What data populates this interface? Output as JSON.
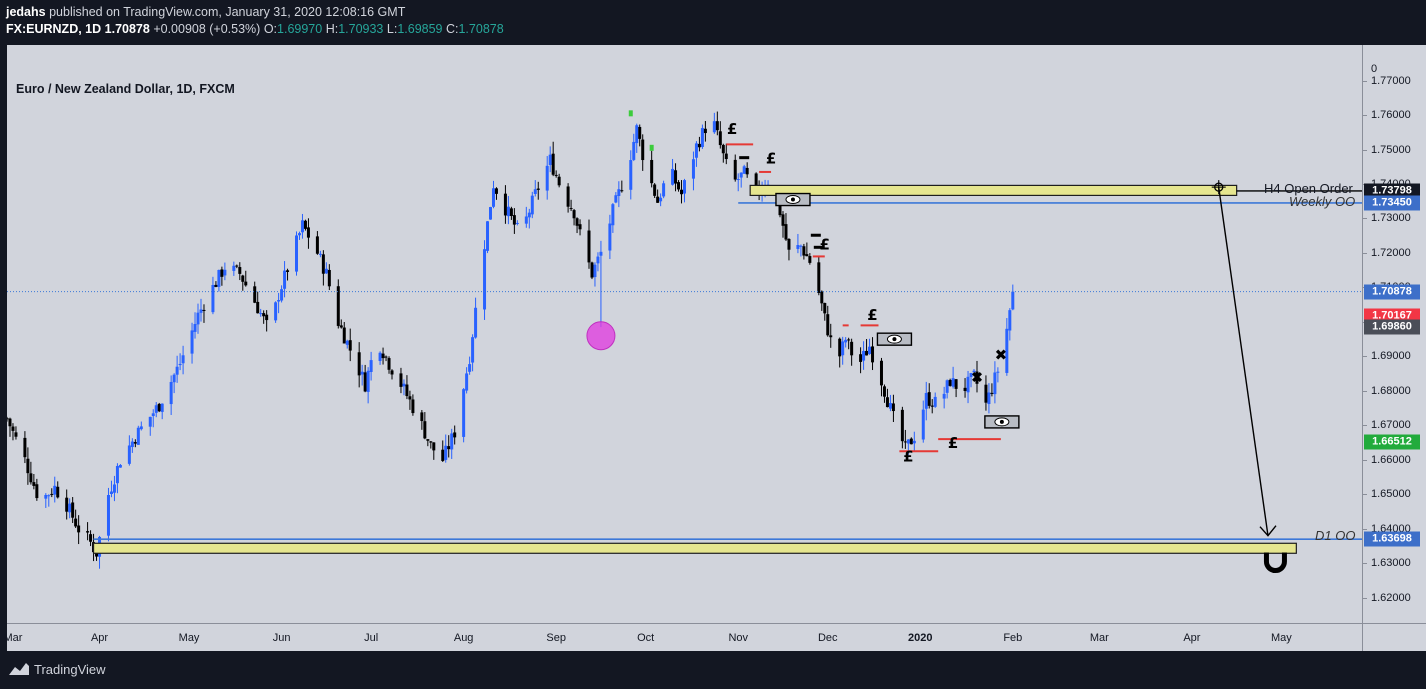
{
  "header": {
    "line1_author": "jedahs",
    "line1_rest": " published on TradingView.com, January 31, 2020 12:08:16 GMT",
    "symbol": "FX:EURNZD, 1D",
    "last": "1.70878",
    "change": "+0.00908 (+0.53%)",
    "o_label": "O:",
    "o": "1.69970",
    "h_label": "H:",
    "h": "1.70933",
    "l_label": "L:",
    "l": "1.69859",
    "c_label": "C:",
    "c": "1.70878"
  },
  "chart_title": "Euro / New Zealand Dollar, 1D, FXCM",
  "annotations": {
    "h4_open_order": "H4 Open Order",
    "weekly_oo": "Weekly OO",
    "d1_oo": "D1 OO"
  },
  "footer": {
    "brand": "TradingView"
  },
  "colors": {
    "bull": "#2962ff",
    "bear": "#000000",
    "zone": "#e6e68f",
    "line": "#3c78d8",
    "badge_blue": "#3d6fc9",
    "badge_red": "#f23645",
    "badge_grey": "#4a4e58",
    "badge_green": "#22ab3c",
    "badge_black": "#131722",
    "pink": "#e040e0"
  },
  "chart_data": {
    "type": "candlestick",
    "title": "Euro / New Zealand Dollar, 1D, FXCM",
    "y_ticks": [
      "1.77000",
      "1.76000",
      "1.75000",
      "1.74000",
      "1.73000",
      "1.72000",
      "1.71000",
      "1.70000",
      "1.69000",
      "1.68000",
      "1.67000",
      "1.66000",
      "1.65000",
      "1.64000",
      "1.63000",
      "1.62000"
    ],
    "y_tick_values": [
      1.77,
      1.76,
      1.75,
      1.74,
      1.73,
      1.72,
      1.71,
      1.7,
      1.69,
      1.68,
      1.67,
      1.66,
      1.65,
      1.64,
      1.63,
      1.62
    ],
    "y_top_label": "0",
    "ylim": [
      1.615,
      1.778
    ],
    "x_ticks": [
      {
        "label": "Mar",
        "day": -6
      },
      {
        "label": "Apr",
        "day": 25
      },
      {
        "label": "May",
        "day": 55
      },
      {
        "label": "Jun",
        "day": 86
      },
      {
        "label": "Jul",
        "day": 116
      },
      {
        "label": "Aug",
        "day": 147
      },
      {
        "label": "Sep",
        "day": 178
      },
      {
        "label": "Oct",
        "day": 208
      },
      {
        "label": "Nov",
        "day": 239
      },
      {
        "label": "Dec",
        "day": 269
      },
      {
        "label": "2020",
        "day": 300,
        "bold": true
      },
      {
        "label": "Feb",
        "day": 331
      },
      {
        "label": "Mar",
        "day": 360
      },
      {
        "label": "Apr",
        "day": 391
      },
      {
        "label": "May",
        "day": 421
      }
    ],
    "x_axis_unit": "days after 2019-03-01",
    "xlim": [
      -6,
      448
    ],
    "anchors": [
      [
        -6,
        1.672
      ],
      [
        0,
        1.66
      ],
      [
        5,
        1.648
      ],
      [
        10,
        1.652
      ],
      [
        14,
        1.647
      ],
      [
        18,
        1.64
      ],
      [
        22,
        1.636
      ],
      [
        24,
        1.633
      ],
      [
        28,
        1.65
      ],
      [
        32,
        1.66
      ],
      [
        38,
        1.668
      ],
      [
        45,
        1.676
      ],
      [
        52,
        1.688
      ],
      [
        58,
        1.702
      ],
      [
        63,
        1.71
      ],
      [
        67,
        1.716
      ],
      [
        72,
        1.714
      ],
      [
        77,
        1.706
      ],
      [
        82,
        1.697
      ],
      [
        85,
        1.708
      ],
      [
        89,
        1.718
      ],
      [
        93,
        1.728
      ],
      [
        97,
        1.722
      ],
      [
        101,
        1.714
      ],
      [
        105,
        1.7
      ],
      [
        110,
        1.69
      ],
      [
        114,
        1.682
      ],
      [
        118,
        1.695
      ],
      [
        122,
        1.688
      ],
      [
        126,
        1.682
      ],
      [
        132,
        1.672
      ],
      [
        136,
        1.664
      ],
      [
        140,
        1.66
      ],
      [
        144,
        1.668
      ],
      [
        149,
        1.69
      ],
      [
        153,
        1.717
      ],
      [
        157,
        1.74
      ],
      [
        161,
        1.733
      ],
      [
        166,
        1.725
      ],
      [
        171,
        1.737
      ],
      [
        176,
        1.747
      ],
      [
        180,
        1.738
      ],
      [
        184,
        1.732
      ],
      [
        187,
        1.722
      ],
      [
        190,
        1.714
      ],
      [
        193,
        1.72
      ],
      [
        197,
        1.732
      ],
      [
        202,
        1.745
      ],
      [
        205,
        1.756
      ],
      [
        208,
        1.745
      ],
      [
        212,
        1.735
      ],
      [
        216,
        1.744
      ],
      [
        220,
        1.737
      ],
      [
        225,
        1.751
      ],
      [
        230,
        1.76
      ],
      [
        234,
        1.748
      ],
      [
        237,
        1.74
      ],
      [
        241,
        1.743
      ],
      [
        245,
        1.737
      ],
      [
        249,
        1.741
      ],
      [
        253,
        1.732
      ],
      [
        256,
        1.72
      ],
      [
        260,
        1.722
      ],
      [
        264,
        1.716
      ],
      [
        268,
        1.701
      ],
      [
        272,
        1.688
      ],
      [
        275,
        1.695
      ],
      [
        279,
        1.687
      ],
      [
        283,
        1.693
      ],
      [
        287,
        1.683
      ],
      [
        291,
        1.672
      ],
      [
        295,
        1.663
      ],
      [
        298,
        1.667
      ],
      [
        302,
        1.678
      ],
      [
        306,
        1.676
      ],
      [
        310,
        1.683
      ],
      [
        314,
        1.68
      ],
      [
        318,
        1.684
      ],
      [
        322,
        1.676
      ],
      [
        326,
        1.686
      ],
      [
        329,
        1.698
      ],
      [
        331,
        1.709
      ]
    ],
    "volatility": 0.0045,
    "spike_low": {
      "day": 193,
      "low": 1.6985
    },
    "last_price": 1.70878,
    "price_badges": [
      {
        "label": "1.73798",
        "value": 1.73798,
        "color": "#131722"
      },
      {
        "label": "1.73450",
        "value": 1.7345,
        "color": "#3d6fc9"
      },
      {
        "label": "1.70878",
        "value": 1.70878,
        "color": "#3d6fc9"
      },
      {
        "label": "1.70167",
        "value": 1.70167,
        "color": "#f23645"
      },
      {
        "label": "1.69860",
        "value": 1.6986,
        "color": "#4a4e58"
      },
      {
        "label": "1.66512",
        "value": 1.66512,
        "color": "#22ab3c"
      },
      {
        "label": "1.63698",
        "value": 1.63698,
        "color": "#3d6fc9"
      }
    ],
    "zones": [
      {
        "name": "h4-open-order-zone",
        "x0": 243,
        "x1": 406,
        "y0": 1.7379,
        "y1": 1.7396
      },
      {
        "name": "d1-open-order-zone",
        "x0": 23,
        "x1": 426,
        "y0": 1.6345,
        "y1": 1.6358
      }
    ],
    "hlines": [
      {
        "name": "weekly-oo-line",
        "x0": 239,
        "x1": 448,
        "y": 1.7345
      },
      {
        "name": "d1-oo-line",
        "x0": 23,
        "x1": 448,
        "y": 1.63698
      }
    ]
  }
}
